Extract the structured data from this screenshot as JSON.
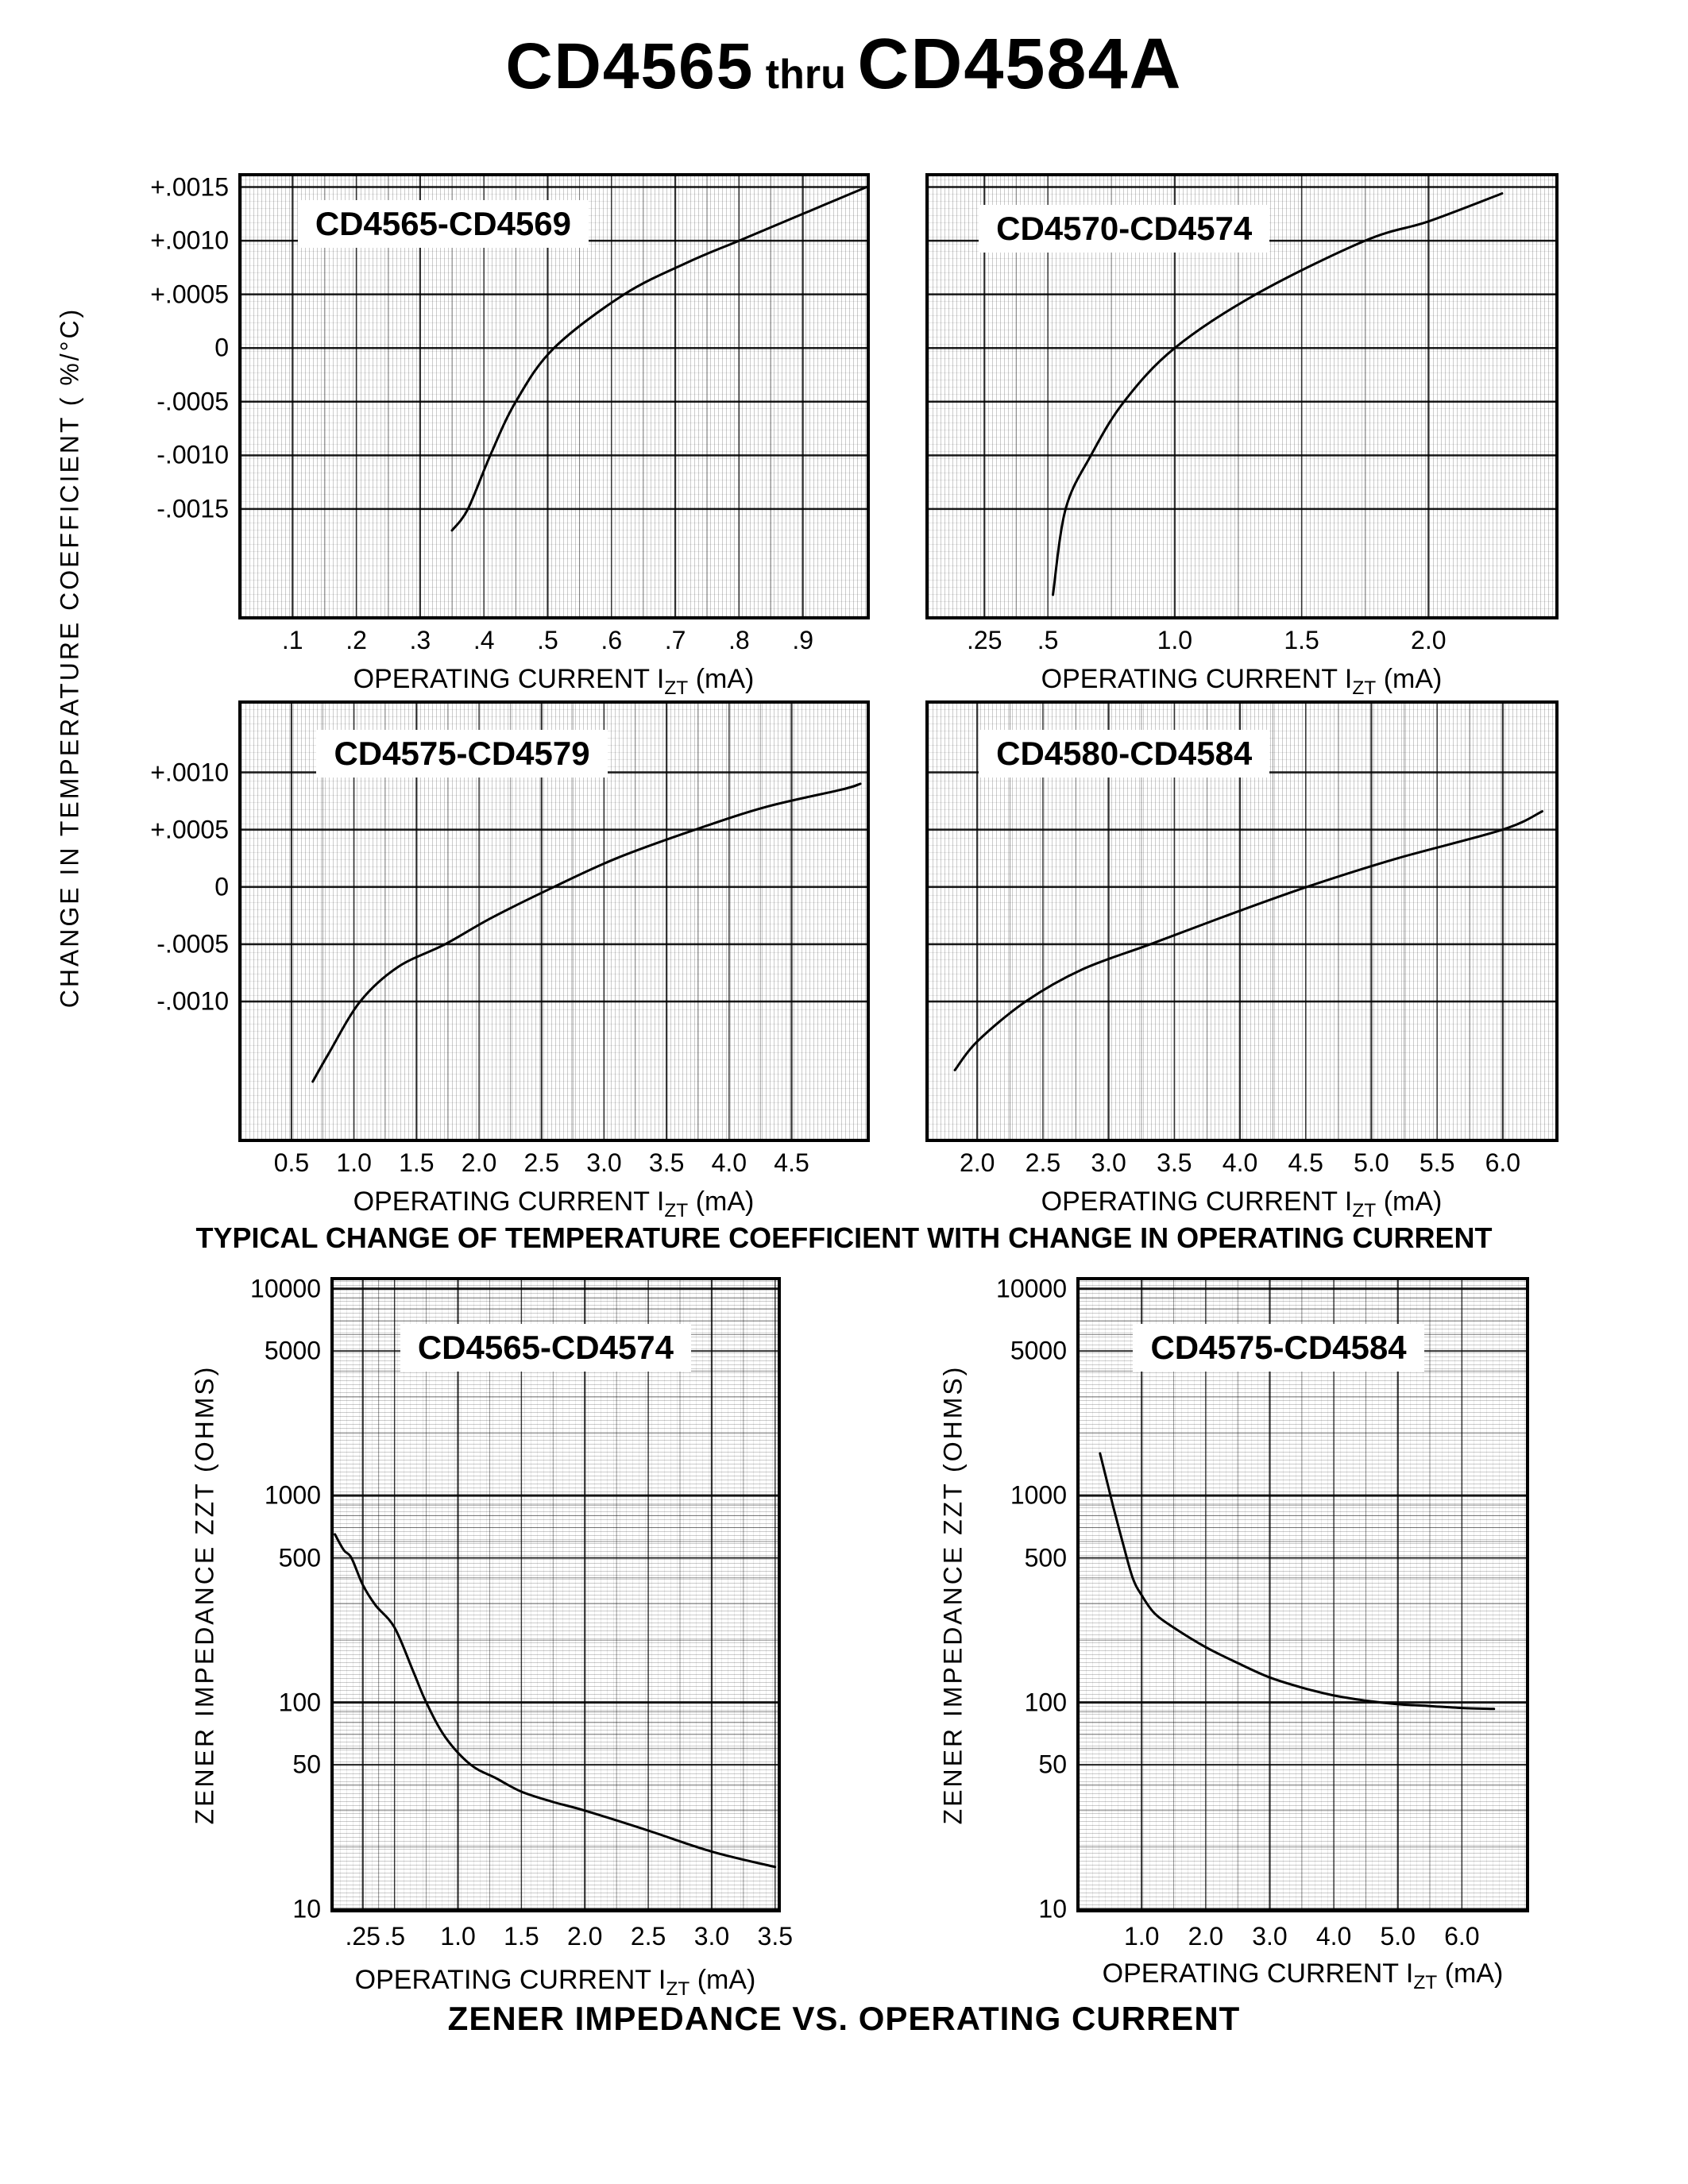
{
  "page": {
    "title": {
      "part1": "CD4565",
      "thru": "thru",
      "part2": "CD4584A"
    },
    "captions": {
      "tc": "TYPICAL CHANGE OF TEMPERATURE COEFFICIENT WITH CHANGE IN OPERATING CURRENT",
      "zz": "ZENER IMPEDANCE VS. OPERATING CURRENT"
    },
    "axis_labels": {
      "tc_y": "CHANGE IN TEMPERATURE COEFFICIENT ( %/°C)",
      "zz_y": "ZENER IMPEDANCE ZZT (OHMS)",
      "x_prefix": "OPERATING CURRENT I",
      "x_sub": "ZT",
      "x_suffix": " (mA)"
    }
  },
  "chart_data": [
    {
      "id": "tc-cd4565-cd4569",
      "type": "line",
      "title": "CD4565-CD4569",
      "xlabel": "OPERATING CURRENT IZT (mA)",
      "ylabel": "CHANGE IN TEMPERATURE COEFFICIENT (%/°C)",
      "yscale": "linear",
      "xlim": [
        0.02,
        1.0
      ],
      "ylim": [
        -0.0025,
        0.0016
      ],
      "x_ticks": [
        {
          "label": ".1",
          "v": 0.1
        },
        {
          "label": ".2",
          "v": 0.2
        },
        {
          "label": ".3",
          "v": 0.3
        },
        {
          "label": ".4",
          "v": 0.4
        },
        {
          "label": ".5",
          "v": 0.5
        },
        {
          "label": ".6",
          "v": 0.6
        },
        {
          "label": ".7",
          "v": 0.7
        },
        {
          "label": ".8",
          "v": 0.8
        },
        {
          "label": ".9",
          "v": 0.9
        }
      ],
      "y_ticks": [
        {
          "label": "+.0015",
          "v": 0.0015
        },
        {
          "label": "+.0010",
          "v": 0.001
        },
        {
          "label": "+.0005",
          "v": 0.0005
        },
        {
          "label": "0",
          "v": 0
        },
        {
          "label": "-.0005",
          "v": -0.0005
        },
        {
          "label": "-.0010",
          "v": -0.001
        },
        {
          "label": "-.0015",
          "v": -0.0015
        }
      ],
      "show_y_labels": true,
      "points": [
        [
          0.35,
          -0.0017
        ],
        [
          0.375,
          -0.0015
        ],
        [
          0.41,
          -0.001
        ],
        [
          0.45,
          -0.0005
        ],
        [
          0.51,
          0.0
        ],
        [
          0.62,
          0.0005
        ],
        [
          0.72,
          0.0008
        ],
        [
          0.8,
          0.001
        ],
        [
          0.9,
          0.00125
        ],
        [
          1.0,
          0.0015
        ]
      ]
    },
    {
      "id": "tc-cd4570-cd4574",
      "type": "line",
      "title": "CD4570-CD4574",
      "xlabel": "OPERATING CURRENT IZT (mA)",
      "ylabel": "CHANGE IN TEMPERATURE COEFFICIENT (%/°C)",
      "yscale": "linear",
      "xlim": [
        0.03,
        2.5
      ],
      "ylim": [
        -0.0025,
        0.0016
      ],
      "x_ticks": [
        {
          "label": ".25",
          "v": 0.25
        },
        {
          "label": ".5",
          "v": 0.5
        },
        {
          "label": "1.0",
          "v": 1.0
        },
        {
          "label": "1.5",
          "v": 1.5
        },
        {
          "label": "2.0",
          "v": 2.0
        }
      ],
      "y_ticks": [
        {
          "label": "+.0015",
          "v": 0.0015
        },
        {
          "label": "+.0010",
          "v": 0.001
        },
        {
          "label": "+.0005",
          "v": 0.0005
        },
        {
          "label": "0",
          "v": 0
        },
        {
          "label": "-.0005",
          "v": -0.0005
        },
        {
          "label": "-.0010",
          "v": -0.001
        },
        {
          "label": "-.0015",
          "v": -0.0015
        }
      ],
      "show_y_labels": false,
      "points": [
        [
          0.52,
          -0.0023
        ],
        [
          0.57,
          -0.0015
        ],
        [
          0.67,
          -0.001
        ],
        [
          0.8,
          -0.0005
        ],
        [
          1.0,
          0.0
        ],
        [
          1.32,
          0.0005
        ],
        [
          1.75,
          0.001
        ],
        [
          2.0,
          0.00118
        ],
        [
          2.29,
          0.00144
        ]
      ]
    },
    {
      "id": "tc-cd4575-cd4579",
      "type": "line",
      "title": "CD4575-CD4579",
      "xlabel": "OPERATING CURRENT IZT (mA)",
      "ylabel": "CHANGE IN TEMPERATURE COEFFICIENT (%/°C)",
      "yscale": "linear",
      "xlim": [
        0.1,
        5.1
      ],
      "ylim": [
        -0.0022,
        0.0016
      ],
      "x_ticks": [
        {
          "label": "0.5",
          "v": 0.5
        },
        {
          "label": "1.0",
          "v": 1.0
        },
        {
          "label": "1.5",
          "v": 1.5
        },
        {
          "label": "2.0",
          "v": 2.0
        },
        {
          "label": "2.5",
          "v": 2.5
        },
        {
          "label": "3.0",
          "v": 3.0
        },
        {
          "label": "3.5",
          "v": 3.5
        },
        {
          "label": "4.0",
          "v": 4.0
        },
        {
          "label": "4.5",
          "v": 4.5
        }
      ],
      "y_ticks": [
        {
          "label": "+.0010",
          "v": 0.001
        },
        {
          "label": "+.0005",
          "v": 0.0005
        },
        {
          "label": "0",
          "v": 0
        },
        {
          "label": "-.0005",
          "v": -0.0005
        },
        {
          "label": "-.0010",
          "v": -0.001
        }
      ],
      "show_y_labels": true,
      "points": [
        [
          0.67,
          -0.0017
        ],
        [
          0.8,
          -0.00145
        ],
        [
          1.05,
          -0.001
        ],
        [
          1.35,
          -0.0007
        ],
        [
          1.73,
          -0.0005
        ],
        [
          2.1,
          -0.00027
        ],
        [
          2.6,
          0.0
        ],
        [
          3.1,
          0.00025
        ],
        [
          3.73,
          0.0005
        ],
        [
          4.3,
          0.0007
        ],
        [
          4.9,
          0.00085
        ],
        [
          5.05,
          0.0009
        ]
      ]
    },
    {
      "id": "tc-cd4580-cd4584",
      "type": "line",
      "title": "CD4580-CD4584",
      "xlabel": "OPERATING CURRENT IZT (mA)",
      "ylabel": "CHANGE IN TEMPERATURE COEFFICIENT (%/°C)",
      "yscale": "linear",
      "xlim": [
        1.63,
        6.4
      ],
      "ylim": [
        -0.0022,
        0.0016
      ],
      "x_ticks": [
        {
          "label": "2.0",
          "v": 2.0
        },
        {
          "label": "2.5",
          "v": 2.5
        },
        {
          "label": "3.0",
          "v": 3.0
        },
        {
          "label": "3.5",
          "v": 3.5
        },
        {
          "label": "4.0",
          "v": 4.0
        },
        {
          "label": "4.5",
          "v": 4.5
        },
        {
          "label": "5.0",
          "v": 5.0
        },
        {
          "label": "5.5",
          "v": 5.5
        },
        {
          "label": "6.0",
          "v": 6.0
        }
      ],
      "y_ticks": [
        {
          "label": "+.0010",
          "v": 0.001
        },
        {
          "label": "+.0005",
          "v": 0.0005
        },
        {
          "label": "0",
          "v": 0
        },
        {
          "label": "-.0005",
          "v": -0.0005
        },
        {
          "label": "-.0010",
          "v": -0.001
        }
      ],
      "show_y_labels": false,
      "points": [
        [
          1.83,
          -0.0016
        ],
        [
          2.0,
          -0.00135
        ],
        [
          2.37,
          -0.001
        ],
        [
          2.8,
          -0.00072
        ],
        [
          3.32,
          -0.0005
        ],
        [
          3.9,
          -0.00025
        ],
        [
          4.51,
          0.0
        ],
        [
          5.2,
          0.00025
        ],
        [
          6.0,
          0.0005
        ],
        [
          6.3,
          0.00066
        ]
      ]
    },
    {
      "id": "zz-cd4565-cd4574",
      "type": "line",
      "title": "CD4565-CD4574",
      "xlabel": "OPERATING CURRENT IZT (mA)",
      "ylabel": "ZENER IMPEDANCE ZZT (OHMS)",
      "yscale": "log",
      "xlim": [
        0.02,
        3.52
      ],
      "ylim": [
        10,
        11000
      ],
      "x_ticks": [
        {
          "label": ".25",
          "v": 0.25
        },
        {
          "label": ".5",
          "v": 0.5
        },
        {
          "label": "1.0",
          "v": 1.0
        },
        {
          "label": "1.5",
          "v": 1.5
        },
        {
          "label": "2.0",
          "v": 2.0
        },
        {
          "label": "2.5",
          "v": 2.5
        },
        {
          "label": "3.0",
          "v": 3.0
        },
        {
          "label": "3.5",
          "v": 3.5
        }
      ],
      "y_ticks": [
        {
          "label": "10000",
          "v": 10000
        },
        {
          "label": "5000",
          "v": 5000
        },
        {
          "label": "1000",
          "v": 1000
        },
        {
          "label": "500",
          "v": 500
        },
        {
          "label": "100",
          "v": 100
        },
        {
          "label": "50",
          "v": 50
        },
        {
          "label": "10",
          "v": 10
        }
      ],
      "show_y_labels": true,
      "points": [
        [
          0.03,
          650
        ],
        [
          0.1,
          545
        ],
        [
          0.16,
          500
        ],
        [
          0.25,
          370
        ],
        [
          0.35,
          295
        ],
        [
          0.5,
          230
        ],
        [
          0.65,
          140
        ],
        [
          0.75,
          100
        ],
        [
          0.9,
          68
        ],
        [
          1.1,
          50
        ],
        [
          1.3,
          43
        ],
        [
          1.5,
          37
        ],
        [
          1.75,
          33
        ],
        [
          2.0,
          30
        ],
        [
          2.5,
          24
        ],
        [
          3.0,
          19
        ],
        [
          3.5,
          16
        ]
      ]
    },
    {
      "id": "zz-cd4575-cd4584",
      "type": "line",
      "title": "CD4575-CD4584",
      "xlabel": "OPERATING CURRENT IZT (mA)",
      "ylabel": "ZENER IMPEDANCE ZZT (OHMS)",
      "yscale": "log",
      "xlim": [
        0.03,
        7.0
      ],
      "ylim": [
        10,
        11000
      ],
      "x_ticks": [
        {
          "label": "1.0",
          "v": 1.0
        },
        {
          "label": "2.0",
          "v": 2.0
        },
        {
          "label": "3.0",
          "v": 3.0
        },
        {
          "label": "4.0",
          "v": 4.0
        },
        {
          "label": "5.0",
          "v": 5.0
        },
        {
          "label": "6.0",
          "v": 6.0
        }
      ],
      "y_ticks": [
        {
          "label": "10000",
          "v": 10000
        },
        {
          "label": "5000",
          "v": 5000
        },
        {
          "label": "1000",
          "v": 1000
        },
        {
          "label": "500",
          "v": 500
        },
        {
          "label": "100",
          "v": 100
        },
        {
          "label": "50",
          "v": 50
        },
        {
          "label": "10",
          "v": 10
        }
      ],
      "show_y_labels": true,
      "points": [
        [
          0.35,
          1600
        ],
        [
          0.45,
          1200
        ],
        [
          0.55,
          900
        ],
        [
          0.7,
          600
        ],
        [
          0.86,
          400
        ],
        [
          1.0,
          330
        ],
        [
          1.2,
          270
        ],
        [
          1.5,
          230
        ],
        [
          2.0,
          185
        ],
        [
          2.5,
          155
        ],
        [
          3.0,
          132
        ],
        [
          3.5,
          118
        ],
        [
          4.0,
          108
        ],
        [
          4.5,
          102
        ],
        [
          5.0,
          98
        ],
        [
          5.5,
          96
        ],
        [
          6.0,
          94
        ],
        [
          6.5,
          93
        ]
      ]
    }
  ]
}
